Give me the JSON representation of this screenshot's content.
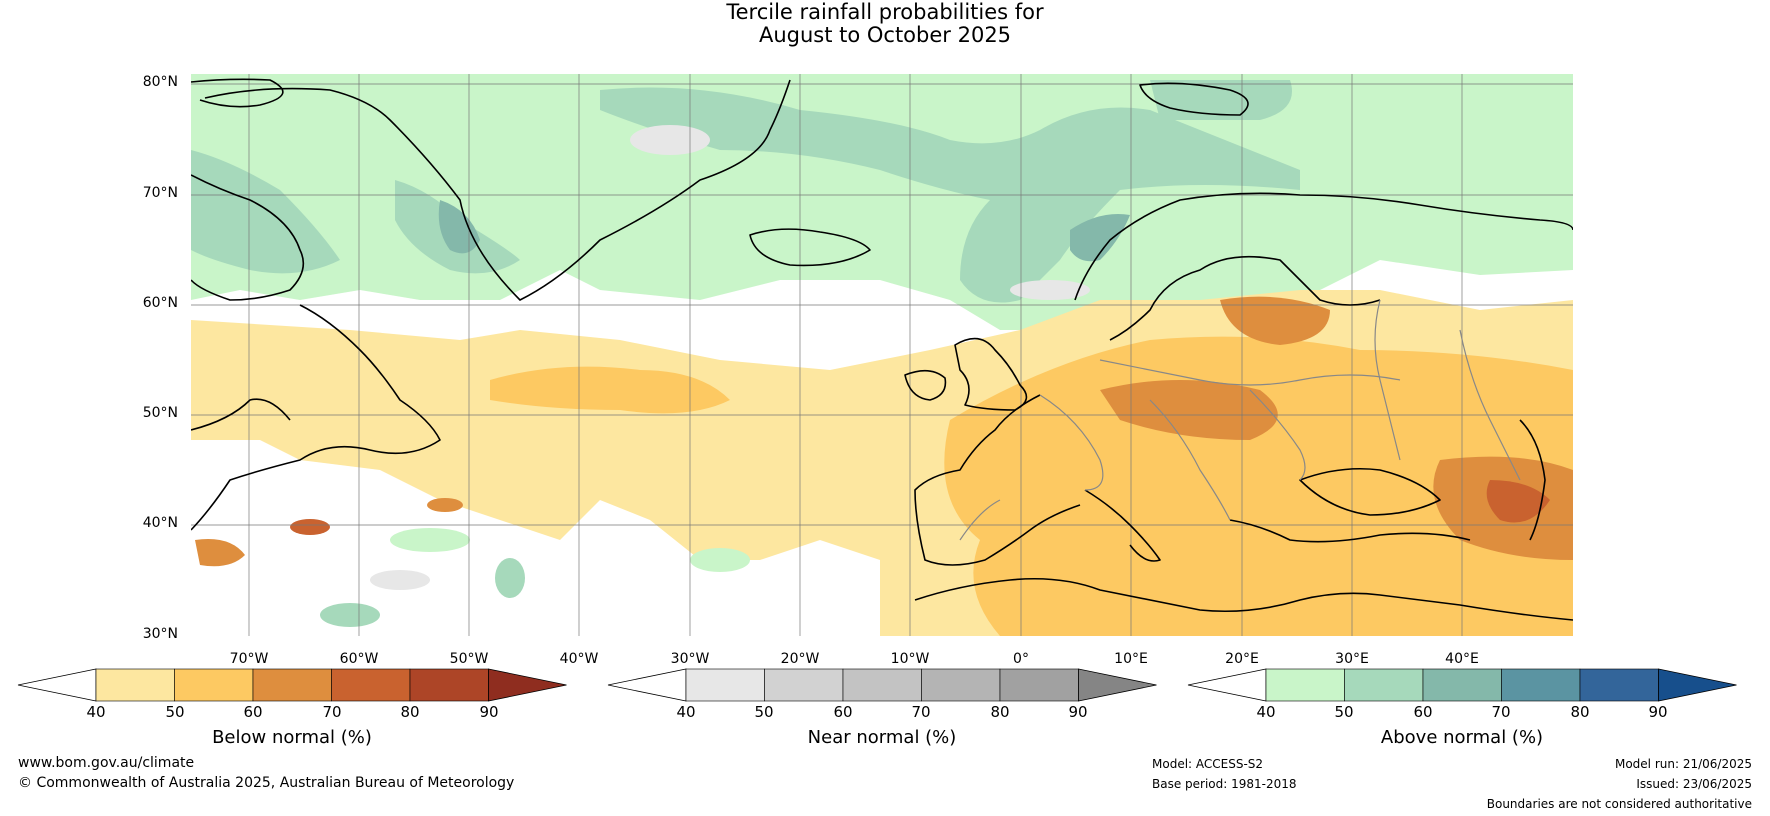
{
  "title": {
    "line1": "Tercile rainfall probabilities for",
    "line2": "August to October 2025"
  },
  "map": {
    "lat_labels": [
      "80°N",
      "70°N",
      "60°N",
      "50°N",
      "40°N",
      "30°N"
    ],
    "lon_labels": [
      "70°W",
      "60°W",
      "50°W",
      "40°W",
      "30°W",
      "20°W",
      "10°W",
      "0°",
      "10°E",
      "20°E",
      "30°E",
      "40°E"
    ]
  },
  "legends": [
    {
      "label": "Below normal (%)",
      "ticks": [
        "40",
        "50",
        "60",
        "70",
        "80",
        "90"
      ],
      "colors": [
        "#ffffff",
        "#fde7a0",
        "#fdc962",
        "#de8e3e",
        "#c9622f",
        "#ad4527",
        "#8f2d1f"
      ]
    },
    {
      "label": "Near normal (%)",
      "ticks": [
        "40",
        "50",
        "60",
        "70",
        "80",
        "90"
      ],
      "colors": [
        "#ffffff",
        "#e7e7e7",
        "#d2d2d2",
        "#c3c3c3",
        "#b4b4b4",
        "#a1a1a1",
        "#858585"
      ]
    },
    {
      "label": "Above normal (%)",
      "ticks": [
        "40",
        "50",
        "60",
        "70",
        "80",
        "90"
      ],
      "colors": [
        "#ffffff",
        "#c9f5c9",
        "#a6d9bb",
        "#84b8aa",
        "#5b94a2",
        "#33659a",
        "#174f8c"
      ]
    }
  ],
  "footer": {
    "website": "www.bom.gov.au/climate",
    "copyright": "© Commonwealth of Australia 2025, Australian Bureau of Meteorology",
    "model": "Model: ACCESS-S2",
    "base_period": "Base period: 1981-2018",
    "model_run": "Model run: 21/06/2025",
    "issued": "Issued: 23/06/2025",
    "disclaimer": "Boundaries are not considered authoritative"
  },
  "colors": {
    "below": [
      "#fde7a0",
      "#fdc962",
      "#de8e3e",
      "#c9622f"
    ],
    "near": [
      "#e7e7e7",
      "#d2d2d2"
    ],
    "above": [
      "#c9f5c9",
      "#a6d9bb",
      "#84b8aa",
      "#5b94a2"
    ],
    "coast": "#000000",
    "border": "#888888"
  }
}
